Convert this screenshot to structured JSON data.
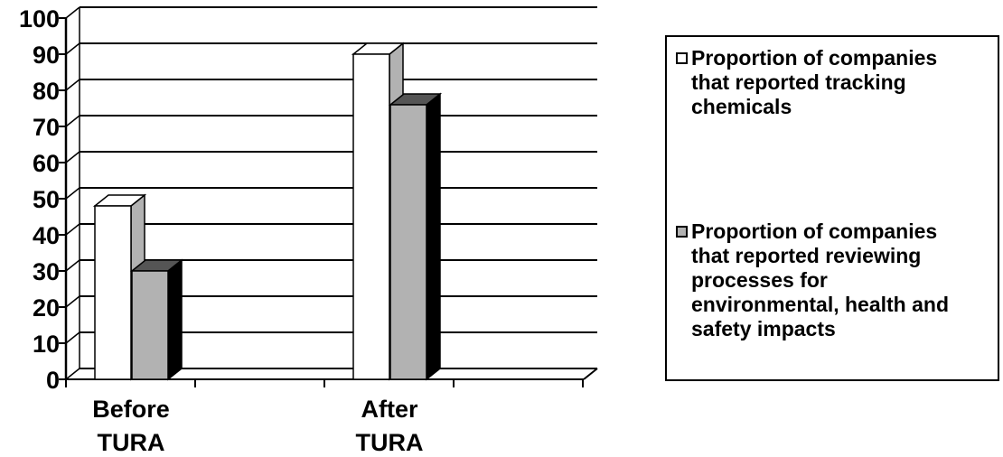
{
  "chart_data": {
    "type": "bar",
    "categories": [
      "Before TURA",
      "After TURA"
    ],
    "category_lines": [
      [
        "Before",
        "TURA"
      ],
      [
        "After",
        "TURA"
      ]
    ],
    "series": [
      {
        "name": "Proportion of companies that reported tracking chemicals",
        "values": [
          48,
          90
        ],
        "color": "#ffffff"
      },
      {
        "name": "Proportion of companies that reported reviewing processes for environmental, health and safety impacts",
        "values": [
          30,
          76
        ],
        "color": "#b2b2b2"
      }
    ],
    "ylim": [
      0,
      100
    ],
    "yticks": [
      0,
      10,
      20,
      30,
      40,
      50,
      60,
      70,
      80,
      90,
      100
    ],
    "grid": true,
    "three_d": true,
    "legend_position": "right"
  },
  "legend": {
    "items": [
      {
        "lines": [
          "Proportion of companies",
          "that reported tracking",
          "chemicals"
        ]
      },
      {
        "lines": [
          "Proportion of companies",
          "that reported reviewing",
          "processes for",
          "environmental, health and",
          "safety impacts"
        ]
      }
    ]
  }
}
